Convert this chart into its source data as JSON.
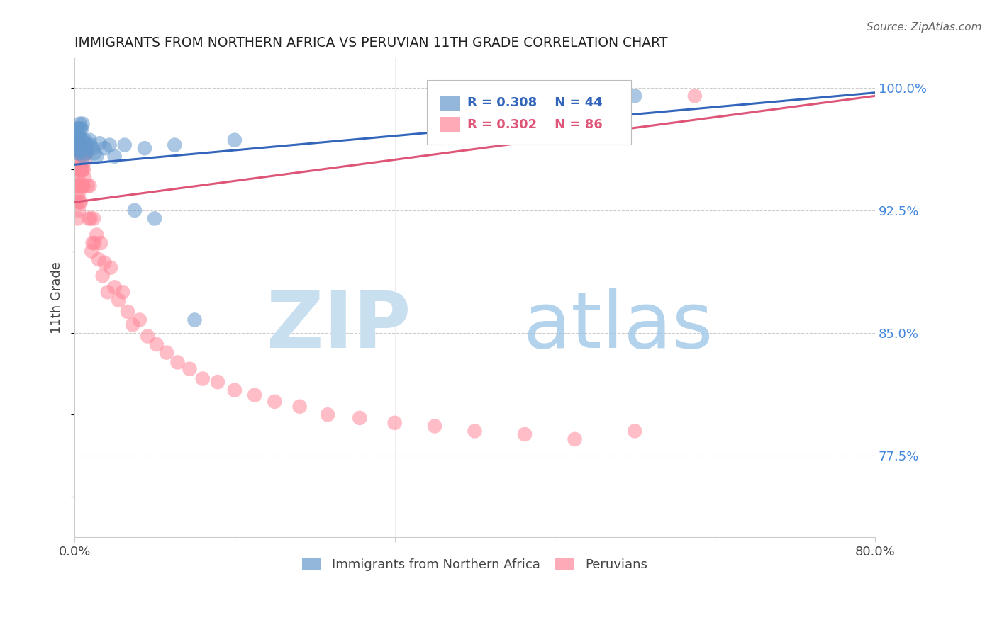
{
  "title": "IMMIGRANTS FROM NORTHERN AFRICA VS PERUVIAN 11TH GRADE CORRELATION CHART",
  "source": "Source: ZipAtlas.com",
  "ylabel": "11th Grade",
  "legend_blue_label": "Immigrants from Northern Africa",
  "legend_pink_label": "Peruvians",
  "r_blue": 0.308,
  "n_blue": 44,
  "r_pink": 0.302,
  "n_pink": 86,
  "xlim": [
    0.0,
    0.8
  ],
  "ylim": [
    0.725,
    1.018
  ],
  "right_yticks": [
    0.775,
    0.85,
    0.925,
    1.0
  ],
  "right_ytick_labels": [
    "77.5%",
    "85.0%",
    "92.5%",
    "100.0%"
  ],
  "blue_color": "#6699CC",
  "pink_color": "#FF8899",
  "blue_line_color": "#3366BB",
  "pink_line_color": "#DD5577",
  "blue_x": [
    0.001,
    0.001,
    0.002,
    0.002,
    0.003,
    0.003,
    0.003,
    0.004,
    0.004,
    0.004,
    0.005,
    0.005,
    0.005,
    0.006,
    0.006,
    0.006,
    0.007,
    0.007,
    0.008,
    0.008,
    0.009,
    0.009,
    0.01,
    0.01,
    0.011,
    0.012,
    0.013,
    0.015,
    0.016,
    0.018,
    0.02,
    0.022,
    0.025,
    0.03,
    0.035,
    0.04,
    0.05,
    0.06,
    0.07,
    0.08,
    0.1,
    0.12,
    0.16,
    0.56
  ],
  "blue_y": [
    0.963,
    0.97,
    0.975,
    0.965,
    0.972,
    0.968,
    0.96,
    0.975,
    0.968,
    0.962,
    0.978,
    0.97,
    0.962,
    0.975,
    0.968,
    0.96,
    0.975,
    0.963,
    0.978,
    0.963,
    0.965,
    0.958,
    0.968,
    0.963,
    0.96,
    0.966,
    0.963,
    0.968,
    0.965,
    0.963,
    0.96,
    0.958,
    0.966,
    0.963,
    0.965,
    0.958,
    0.965,
    0.925,
    0.963,
    0.92,
    0.965,
    0.858,
    0.968,
    0.995
  ],
  "pink_x": [
    0.001,
    0.001,
    0.001,
    0.002,
    0.002,
    0.002,
    0.002,
    0.003,
    0.003,
    0.003,
    0.003,
    0.003,
    0.004,
    0.004,
    0.004,
    0.004,
    0.004,
    0.005,
    0.005,
    0.005,
    0.005,
    0.005,
    0.006,
    0.006,
    0.006,
    0.006,
    0.006,
    0.007,
    0.007,
    0.007,
    0.007,
    0.008,
    0.008,
    0.008,
    0.008,
    0.009,
    0.009,
    0.009,
    0.01,
    0.01,
    0.01,
    0.011,
    0.011,
    0.012,
    0.012,
    0.013,
    0.014,
    0.015,
    0.016,
    0.017,
    0.018,
    0.019,
    0.02,
    0.022,
    0.024,
    0.026,
    0.028,
    0.03,
    0.033,
    0.036,
    0.04,
    0.044,
    0.048,
    0.053,
    0.058,
    0.065,
    0.073,
    0.082,
    0.092,
    0.103,
    0.115,
    0.128,
    0.143,
    0.16,
    0.18,
    0.2,
    0.225,
    0.253,
    0.285,
    0.32,
    0.36,
    0.4,
    0.45,
    0.5,
    0.56,
    0.62
  ],
  "pink_y": [
    0.955,
    0.94,
    0.96,
    0.965,
    0.955,
    0.945,
    0.935,
    0.96,
    0.95,
    0.94,
    0.93,
    0.92,
    0.965,
    0.955,
    0.945,
    0.935,
    0.925,
    0.96,
    0.95,
    0.94,
    0.93,
    0.968,
    0.96,
    0.95,
    0.94,
    0.93,
    0.968,
    0.96,
    0.95,
    0.94,
    0.965,
    0.96,
    0.95,
    0.94,
    0.965,
    0.96,
    0.95,
    0.94,
    0.965,
    0.955,
    0.945,
    0.965,
    0.96,
    0.965,
    0.96,
    0.94,
    0.92,
    0.94,
    0.92,
    0.9,
    0.905,
    0.92,
    0.905,
    0.91,
    0.895,
    0.905,
    0.885,
    0.893,
    0.875,
    0.89,
    0.878,
    0.87,
    0.875,
    0.863,
    0.855,
    0.858,
    0.848,
    0.843,
    0.838,
    0.832,
    0.828,
    0.822,
    0.82,
    0.815,
    0.812,
    0.808,
    0.805,
    0.8,
    0.798,
    0.795,
    0.793,
    0.79,
    0.788,
    0.785,
    0.79,
    0.995
  ],
  "blue_trend_x": [
    0.0,
    0.8
  ],
  "blue_trend_y": [
    0.953,
    0.997
  ],
  "pink_trend_x": [
    0.0,
    0.8
  ],
  "pink_trend_y": [
    0.93,
    0.995
  ]
}
